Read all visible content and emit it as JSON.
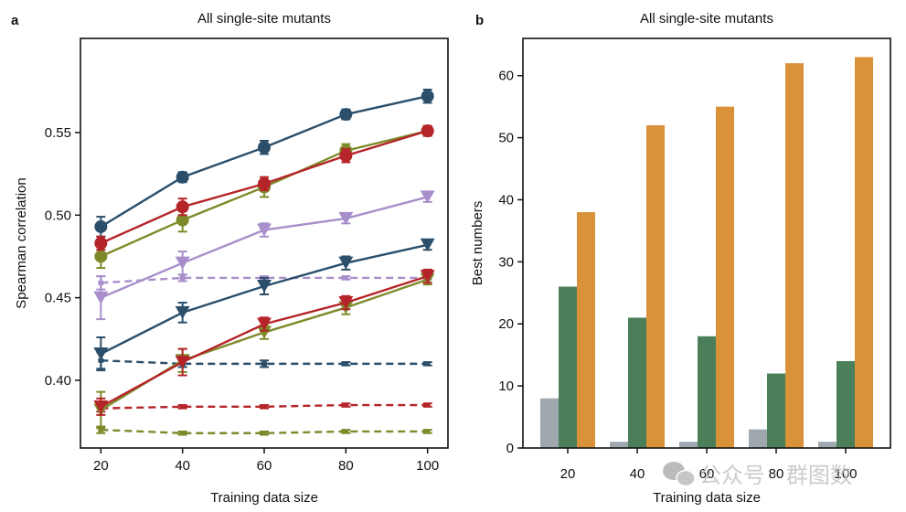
{
  "chart_data": [
    {
      "panel": "a",
      "type": "line",
      "title": "All single-site mutants",
      "xlabel": "Training data size",
      "ylabel": "Spearman correlation",
      "x": [
        20,
        40,
        60,
        80,
        100
      ],
      "xticks": [
        "20",
        "40",
        "60",
        "80",
        "100"
      ],
      "yticks": [
        "0.40",
        "0.45",
        "0.50",
        "0.55"
      ],
      "ytick_values": [
        0.4,
        0.45,
        0.5,
        0.55
      ],
      "xlim": [
        15,
        105
      ],
      "ylim": [
        0.359,
        0.607
      ],
      "grid": false,
      "legend": "none",
      "series": [
        {
          "name": "blue-circle-solid",
          "color": "#2B4F6B",
          "marker": "circle",
          "linestyle": "solid",
          "values": [
            0.493,
            0.523,
            0.541,
            0.561,
            0.572
          ],
          "err": [
            0.006,
            0.003,
            0.004,
            0.003,
            0.004
          ]
        },
        {
          "name": "olive-circle-solid",
          "color": "#7E8A2A",
          "marker": "circle",
          "linestyle": "solid",
          "values": [
            0.475,
            0.497,
            0.517,
            0.539,
            0.551
          ],
          "err": [
            0.007,
            0.007,
            0.006,
            0.004,
            0.003
          ]
        },
        {
          "name": "red-circle-solid",
          "color": "#B52428",
          "marker": "circle",
          "linestyle": "solid",
          "values": [
            0.483,
            0.505,
            0.519,
            0.536,
            0.551
          ],
          "err": [
            0.004,
            0.005,
            0.004,
            0.004,
            0.003
          ]
        },
        {
          "name": "purple-triangle-solid",
          "color": "#A88FCB",
          "marker": "triangle-down",
          "linestyle": "solid",
          "values": [
            0.45,
            0.471,
            0.491,
            0.498,
            0.511
          ],
          "err": [
            0.013,
            0.007,
            0.004,
            0.003,
            0.003
          ]
        },
        {
          "name": "purple-dashed",
          "color": "#A88FCB",
          "marker": "none",
          "linestyle": "dashed",
          "values": [
            0.459,
            0.462,
            0.462,
            0.462,
            0.462
          ],
          "err": [
            0.004,
            0.002,
            0.001,
            0.001,
            0.001
          ]
        },
        {
          "name": "blue-triangle-solid",
          "color": "#2B4F6B",
          "marker": "triangle-down",
          "linestyle": "solid",
          "values": [
            0.416,
            0.441,
            0.457,
            0.471,
            0.482
          ],
          "err": [
            0.01,
            0.006,
            0.005,
            0.004,
            0.003
          ]
        },
        {
          "name": "blue-dashed",
          "color": "#2B4F6B",
          "marker": "none",
          "linestyle": "dashed",
          "values": [
            0.412,
            0.41,
            0.41,
            0.41,
            0.41
          ],
          "err": [
            0.005,
            0.002,
            0.002,
            0.001,
            0.001
          ]
        },
        {
          "name": "olive-triangle-solid",
          "color": "#7E8A2A",
          "marker": "triangle-down",
          "linestyle": "solid",
          "values": [
            0.382,
            0.412,
            0.429,
            0.444,
            0.461
          ],
          "err": [
            0.011,
            0.007,
            0.004,
            0.004,
            0.003
          ]
        },
        {
          "name": "red-triangle-solid",
          "color": "#B52428",
          "marker": "triangle-down",
          "linestyle": "solid",
          "values": [
            0.384,
            0.411,
            0.434,
            0.447,
            0.463
          ],
          "err": [
            0.005,
            0.008,
            0.004,
            0.004,
            0.004
          ]
        },
        {
          "name": "red-dashed",
          "color": "#B52428",
          "marker": "none",
          "linestyle": "dashed",
          "values": [
            0.383,
            0.384,
            0.384,
            0.385,
            0.385
          ],
          "err": [
            0.002,
            0.001,
            0.001,
            0.001,
            0.001
          ]
        },
        {
          "name": "olive-dashed",
          "color": "#7E8A2A",
          "marker": "none",
          "linestyle": "dashed",
          "values": [
            0.37,
            0.368,
            0.368,
            0.369,
            0.369
          ],
          "err": [
            0.002,
            0.001,
            0.001,
            0.001,
            0.001
          ]
        }
      ]
    },
    {
      "panel": "b",
      "type": "bar",
      "title": "All single-site mutants",
      "xlabel": "Training data size",
      "ylabel": "Best numbers",
      "categories": [
        "20",
        "40",
        "60",
        "80",
        "100"
      ],
      "yticks": [
        "0",
        "10",
        "20",
        "30",
        "40",
        "50",
        "60"
      ],
      "ytick_values": [
        0,
        10,
        20,
        30,
        40,
        50,
        60
      ],
      "ylim": [
        0,
        66
      ],
      "grid": false,
      "legend": "none",
      "series": [
        {
          "name": "grey",
          "color": "#9EA8AE",
          "values": [
            8,
            1,
            1,
            3,
            1
          ]
        },
        {
          "name": "green",
          "color": "#4A7F5A",
          "values": [
            26,
            21,
            18,
            12,
            14
          ]
        },
        {
          "name": "orange",
          "color": "#D9923A",
          "values": [
            38,
            52,
            55,
            62,
            63
          ]
        }
      ]
    }
  ],
  "panel_labels": {
    "a": "a",
    "b": "b"
  },
  "watermark": {
    "text": "公众号 · 群图数",
    "icon": "wechat-icon"
  }
}
